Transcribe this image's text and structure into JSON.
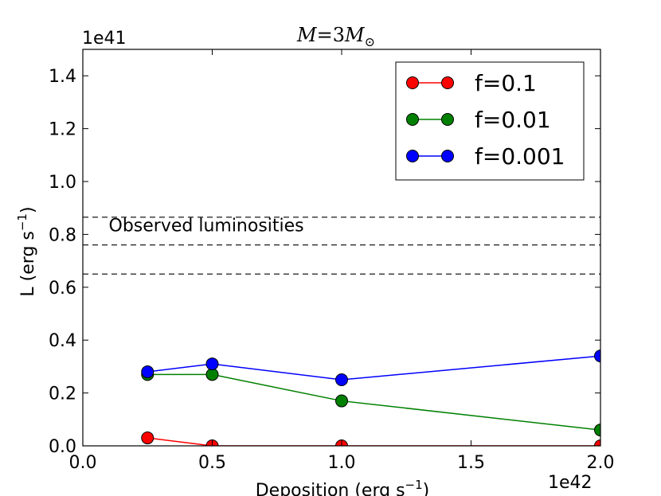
{
  "chart_data": {
    "type": "line",
    "title": "M = 3M⊙",
    "title_parts": {
      "lhs": "M",
      "eq": "=3",
      "rhs": "M",
      "sub": "⊙"
    },
    "xlabel": "Deposition (erg s",
    "xlabel_sup": "−1",
    "xlabel_close": ")",
    "ylabel": "L (erg s",
    "ylabel_sup": "−1",
    "ylabel_close": ")",
    "x_offset": "1e42",
    "y_offset": "1e41",
    "xlim": [
      0.0,
      2.0
    ],
    "ylim": [
      0.0,
      1.5
    ],
    "xticks": [
      0.0,
      0.5,
      1.0,
      1.5,
      2.0
    ],
    "xtick_labels": [
      "0.0",
      "0.5",
      "1.0",
      "1.5",
      "2.0"
    ],
    "yticks": [
      0.0,
      0.2,
      0.4,
      0.6,
      0.8,
      1.0,
      1.2,
      1.4
    ],
    "ytick_labels": [
      "0.0",
      "0.2",
      "0.4",
      "0.6",
      "0.8",
      "1.0",
      "1.2",
      "1.4"
    ],
    "x": [
      0.25,
      0.5,
      1.0,
      2.0
    ],
    "series": [
      {
        "name": "f=0.1",
        "color": "#ff0000",
        "values": [
          0.03,
          0.0,
          0.0,
          0.0
        ]
      },
      {
        "name": "f=0.01",
        "color": "#008000",
        "values": [
          0.27,
          0.27,
          0.17,
          0.06
        ]
      },
      {
        "name": "f=0.001",
        "color": "#0000ff",
        "values": [
          0.28,
          0.31,
          0.25,
          0.34
        ]
      }
    ],
    "hlines": [
      0.65,
      0.76,
      0.865
    ],
    "annotation": "Observed luminosities",
    "legend_position": "top-right"
  }
}
